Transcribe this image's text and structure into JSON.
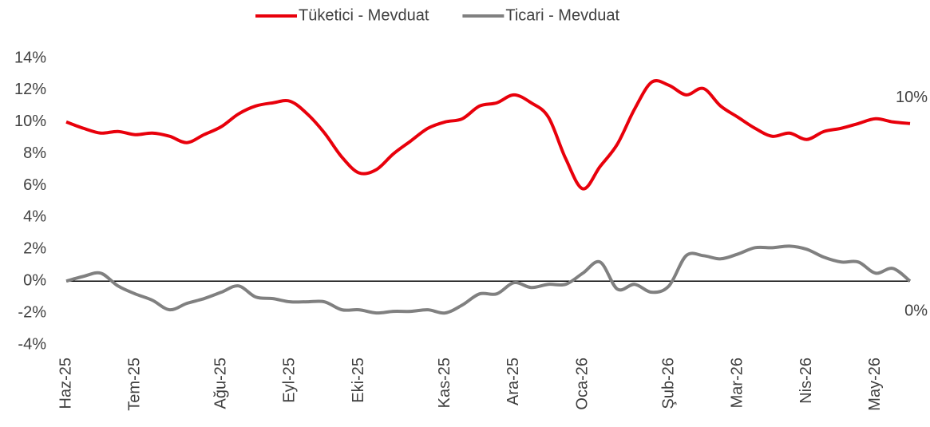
{
  "chart_data": {
    "type": "line",
    "categories": [
      "Haz-25",
      null,
      null,
      null,
      "Tem-25",
      null,
      null,
      null,
      null,
      "Ağu-25",
      null,
      null,
      null,
      "Eyl-25",
      null,
      null,
      null,
      "Eki-25",
      null,
      null,
      null,
      null,
      "Kas-25",
      null,
      null,
      null,
      "Ara-25",
      null,
      null,
      null,
      "Oca-26",
      null,
      null,
      null,
      null,
      "Şub-26",
      null,
      null,
      null,
      "Mar-26",
      null,
      null,
      null,
      "Nis-26",
      null,
      null,
      null,
      "May-26",
      null,
      null
    ],
    "series": [
      {
        "name": "Tüketici - Mevduat",
        "color": "#e8000b",
        "values": [
          10.0,
          9.6,
          9.3,
          9.4,
          9.2,
          9.3,
          9.1,
          8.7,
          9.2,
          9.7,
          10.5,
          11.0,
          11.2,
          11.3,
          10.5,
          9.3,
          7.8,
          6.8,
          7.0,
          8.0,
          8.8,
          9.6,
          10.0,
          10.2,
          11.0,
          11.2,
          11.7,
          11.2,
          10.3,
          7.7,
          5.8,
          7.2,
          8.6,
          10.8,
          12.5,
          12.3,
          11.7,
          12.1,
          11.0,
          10.3,
          9.6,
          9.1,
          9.3,
          8.9,
          9.4,
          9.6,
          9.9,
          10.2,
          10.0,
          9.9
        ],
        "value_labels": [
          null,
          null,
          null,
          null,
          null,
          null,
          null,
          null,
          null,
          null,
          null,
          null,
          null,
          null,
          null,
          null,
          null,
          null,
          null,
          null,
          null,
          null,
          null,
          null,
          null,
          null,
          null,
          null,
          null,
          null,
          null,
          null,
          null,
          null,
          null,
          null,
          null,
          null,
          null,
          null,
          null,
          null,
          null,
          null,
          null,
          null,
          null,
          null,
          null,
          "10%"
        ]
      },
      {
        "name": "Ticari - Mevduat",
        "color": "#808080",
        "values": [
          0.0,
          0.3,
          0.5,
          -0.3,
          -0.8,
          -1.2,
          -1.8,
          -1.4,
          -1.1,
          -0.7,
          -0.3,
          -1.0,
          -1.1,
          -1.3,
          -1.3,
          -1.3,
          -1.8,
          -1.8,
          -2.0,
          -1.9,
          -1.9,
          -1.8,
          -2.0,
          -1.5,
          -0.8,
          -0.8,
          -0.1,
          -0.4,
          -0.2,
          -0.2,
          0.5,
          1.2,
          -0.5,
          -0.2,
          -0.7,
          -0.3,
          1.6,
          1.6,
          1.4,
          1.7,
          2.1,
          2.1,
          2.2,
          2.0,
          1.5,
          1.2,
          1.2,
          0.5,
          0.8,
          0.0
        ],
        "value_labels": [
          null,
          null,
          null,
          null,
          null,
          null,
          null,
          null,
          null,
          null,
          null,
          null,
          null,
          null,
          null,
          null,
          null,
          null,
          null,
          null,
          null,
          null,
          null,
          null,
          null,
          null,
          null,
          null,
          null,
          null,
          null,
          null,
          null,
          null,
          null,
          null,
          null,
          null,
          null,
          null,
          null,
          null,
          null,
          null,
          null,
          null,
          null,
          null,
          null,
          "0%"
        ]
      }
    ],
    "ylim": [
      -4,
      14
    ],
    "yticks": [
      {
        "value": -4,
        "label": "-4%"
      },
      {
        "value": -2,
        "label": "-2%"
      },
      {
        "value": 0,
        "label": "0%"
      },
      {
        "value": 2,
        "label": "2%"
      },
      {
        "value": 4,
        "label": "4%"
      },
      {
        "value": 6,
        "label": "6%"
      },
      {
        "value": 8,
        "label": "8%"
      },
      {
        "value": 10,
        "label": "10%"
      },
      {
        "value": 12,
        "label": "12%"
      },
      {
        "value": 14,
        "label": "14%"
      }
    ],
    "legend": "top",
    "grid": false
  }
}
